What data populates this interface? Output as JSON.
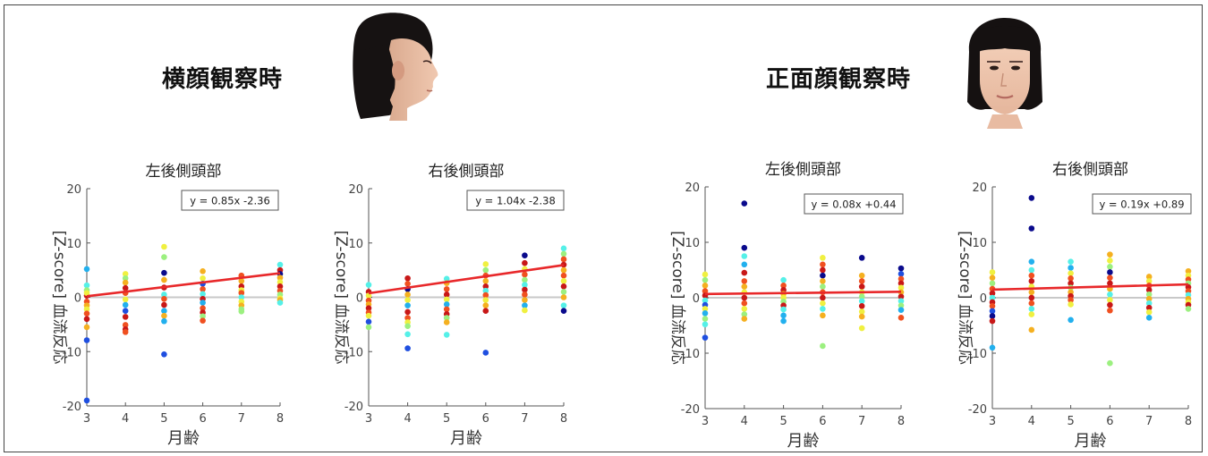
{
  "groups": [
    {
      "title": "横顔観察時",
      "face": "profile-face"
    },
    {
      "title": "正面顔観察時",
      "face": "frontal-face"
    }
  ],
  "colors": {
    "fit_line": "#e8282a",
    "zero_line": "#c8c8c8",
    "axis": "#555555",
    "palette": [
      "#0a0a8c",
      "#1f4fe0",
      "#22b0ee",
      "#55f0e8",
      "#9cf080",
      "#f0f040",
      "#f5b020",
      "#f05020",
      "#c81818"
    ]
  },
  "chart_data": [
    {
      "type": "scatter",
      "title": "左後側頭部",
      "xlabel": "月齢",
      "ylabel": "[Z-score] 血流反応",
      "xlim": [
        3,
        8
      ],
      "ylim": [
        -20,
        20
      ],
      "xticks": [
        3,
        4,
        5,
        6,
        7,
        8
      ],
      "yticks": [
        -20,
        -10,
        0,
        10,
        20
      ],
      "fit": {
        "label": "y = 0.85x -2.36",
        "slope": 0.85,
        "intercept": -2.36
      },
      "x": [
        3,
        3,
        3,
        3,
        3,
        3,
        3,
        3,
        3,
        3,
        3,
        3,
        3,
        4,
        4,
        4,
        4,
        4,
        4,
        4,
        4,
        4,
        4,
        4,
        4,
        5,
        5,
        5,
        5,
        5,
        5,
        5,
        5,
        5,
        5,
        5,
        5,
        6,
        6,
        6,
        6,
        6,
        6,
        6,
        6,
        6,
        6,
        6,
        7,
        7,
        7,
        7,
        7,
        7,
        7,
        7,
        7,
        7,
        8,
        8,
        8,
        8,
        8,
        8,
        8,
        8,
        8,
        8,
        8
      ],
      "y": [
        5.2,
        2.2,
        1.3,
        0.3,
        -0.8,
        -1.5,
        -2.2,
        -3.0,
        -4.0,
        -5.5,
        -7.9,
        -19.0,
        0.8,
        4.3,
        3.5,
        2.7,
        1.7,
        0.8,
        -0.4,
        -1.4,
        -2.5,
        -3.6,
        -5.1,
        -5.9,
        -6.4,
        9.3,
        7.4,
        4.5,
        3.2,
        1.8,
        0.5,
        -0.3,
        -1.4,
        -2.5,
        -3.4,
        -4.4,
        -10.5,
        4.8,
        3.5,
        2.5,
        1.5,
        0.6,
        -0.3,
        -1.0,
        -2.0,
        -2.8,
        -3.5,
        -4.3,
        4.0,
        3.0,
        2.0,
        1.3,
        0.8,
        0.0,
        -0.8,
        -1.5,
        -2.2,
        -2.6,
        6.0,
        5.0,
        4.3,
        3.6,
        2.8,
        2.0,
        1.2,
        0.5,
        -0.2,
        -0.5,
        -1.0
      ],
      "c": [
        2,
        3,
        4,
        8,
        7,
        6,
        5,
        7,
        8,
        6,
        1,
        1,
        5,
        5,
        4,
        6,
        8,
        7,
        5,
        2,
        1,
        8,
        7,
        8,
        7,
        5,
        4,
        0,
        6,
        8,
        3,
        7,
        8,
        2,
        6,
        2,
        1,
        6,
        5,
        1,
        7,
        3,
        8,
        2,
        7,
        8,
        4,
        7,
        7,
        6,
        8,
        5,
        7,
        3,
        5,
        6,
        4,
        4,
        3,
        8,
        0,
        6,
        5,
        8,
        7,
        4,
        5,
        6,
        3
      ]
    },
    {
      "type": "scatter",
      "title": "右後側頭部",
      "xlabel": "月齢",
      "ylabel": "[Z-score] 血流反応",
      "xlim": [
        3,
        8
      ],
      "ylim": [
        -20,
        20
      ],
      "xticks": [
        3,
        4,
        5,
        6,
        7,
        8
      ],
      "yticks": [
        -20,
        -10,
        0,
        10,
        20
      ],
      "fit": {
        "label": "y = 1.04x -2.38",
        "slope": 1.04,
        "intercept": -2.38
      },
      "x": [
        3,
        3,
        3,
        3,
        3,
        3,
        3,
        3,
        3,
        3,
        4,
        4,
        4,
        4,
        4,
        4,
        4,
        4,
        4,
        4,
        4,
        4,
        5,
        5,
        5,
        5,
        5,
        5,
        5,
        5,
        5,
        5,
        5,
        6,
        6,
        6,
        6,
        6,
        6,
        6,
        6,
        6,
        6,
        6,
        7,
        7,
        7,
        7,
        7,
        7,
        7,
        7,
        7,
        7,
        7,
        8,
        8,
        8,
        8,
        8,
        8,
        8,
        8,
        8,
        8,
        8,
        8
      ],
      "y": [
        2.3,
        1.0,
        0.3,
        -0.6,
        -1.3,
        -2.0,
        -2.8,
        -3.4,
        -4.5,
        -5.5,
        3.5,
        2.5,
        1.5,
        0.5,
        -0.5,
        -1.5,
        -2.7,
        -3.8,
        -4.6,
        -5.3,
        -6.8,
        -9.4,
        3.4,
        2.6,
        1.5,
        0.5,
        -0.4,
        -1.3,
        -2.2,
        -3.1,
        -3.8,
        -4.6,
        -6.9,
        6.1,
        5.0,
        4.0,
        3.0,
        2.0,
        1.2,
        0.4,
        -0.5,
        -1.5,
        -2.5,
        -10.2,
        7.7,
        6.3,
        5.2,
        4.2,
        3.2,
        2.3,
        1.4,
        0.5,
        -0.5,
        -1.5,
        -2.4,
        9.0,
        8.0,
        7.0,
        6.0,
        5.0,
        4.0,
        3.0,
        2.0,
        1.0,
        0.0,
        -1.5,
        -2.5
      ],
      "c": [
        3,
        8,
        5,
        7,
        6,
        8,
        7,
        5,
        1,
        4,
        8,
        7,
        0,
        6,
        5,
        2,
        8,
        7,
        5,
        4,
        3,
        1,
        3,
        6,
        7,
        8,
        5,
        2,
        7,
        8,
        4,
        6,
        3,
        5,
        4,
        7,
        6,
        8,
        3,
        7,
        5,
        6,
        8,
        1,
        0,
        8,
        5,
        7,
        4,
        3,
        8,
        7,
        6,
        2,
        5,
        3,
        4,
        7,
        8,
        6,
        7,
        5,
        8,
        4,
        6,
        3,
        0
      ]
    },
    {
      "type": "scatter",
      "title": "左後側頭部",
      "xlabel": "月齢",
      "ylabel": "[Z-score] 血流反応",
      "xlim": [
        3,
        8
      ],
      "ylim": [
        -20,
        20
      ],
      "xticks": [
        3,
        4,
        5,
        6,
        7,
        8
      ],
      "yticks": [
        -20,
        -10,
        0,
        10,
        20
      ],
      "fit": {
        "label": "y = 0.08x +0.44",
        "slope": 0.08,
        "intercept": 0.44
      },
      "x": [
        3,
        3,
        3,
        3,
        3,
        3,
        3,
        3,
        3,
        3,
        3,
        3,
        4,
        4,
        4,
        4,
        4,
        4,
        4,
        4,
        4,
        4,
        4,
        4,
        4,
        5,
        5,
        5,
        5,
        5,
        5,
        5,
        5,
        5,
        5,
        6,
        6,
        6,
        6,
        6,
        6,
        6,
        6,
        6,
        6,
        6,
        6,
        7,
        7,
        7,
        7,
        7,
        7,
        7,
        7,
        7,
        7,
        7,
        8,
        8,
        8,
        8,
        8,
        8,
        8,
        8,
        8,
        8,
        8
      ],
      "y": [
        4.2,
        3.2,
        2.2,
        1.2,
        0.4,
        -0.5,
        -1.3,
        -2.0,
        -2.8,
        -3.8,
        -4.8,
        -7.2,
        17.0,
        9.0,
        7.5,
        6.0,
        4.5,
        3.0,
        2.0,
        1.0,
        0.0,
        -1.0,
        -2.0,
        -3.0,
        -3.8,
        3.2,
        2.2,
        1.4,
        0.7,
        0.0,
        -0.7,
        -1.4,
        -2.1,
        -3.2,
        -4.2,
        7.2,
        6.0,
        5.0,
        4.0,
        3.0,
        2.0,
        1.0,
        0.0,
        -1.0,
        -2.0,
        -3.2,
        -8.7,
        7.2,
        4.0,
        3.0,
        2.0,
        1.0,
        0.2,
        -0.6,
        -1.5,
        -2.5,
        -3.4,
        -5.5,
        5.3,
        4.3,
        3.4,
        2.6,
        1.8,
        1.0,
        0.2,
        -0.6,
        -1.4,
        -2.2,
        -3.6
      ],
      "c": [
        5,
        4,
        6,
        7,
        8,
        3,
        1,
        5,
        2,
        4,
        3,
        1,
        0,
        0,
        3,
        2,
        8,
        7,
        6,
        5,
        8,
        7,
        5,
        4,
        6,
        3,
        7,
        8,
        6,
        5,
        4,
        8,
        3,
        2,
        2,
        5,
        7,
        8,
        0,
        6,
        4,
        7,
        8,
        5,
        3,
        6,
        4,
        0,
        6,
        7,
        8,
        5,
        4,
        3,
        8,
        5,
        6,
        5,
        0,
        1,
        7,
        8,
        5,
        6,
        8,
        3,
        4,
        2,
        7
      ]
    },
    {
      "type": "scatter",
      "title": "右後側頭部",
      "xlabel": "月齢",
      "ylabel": "[Z-score] 血流反応",
      "xlim": [
        3,
        8
      ],
      "ylim": [
        -20,
        20
      ],
      "xticks": [
        3,
        4,
        5,
        6,
        7,
        8
      ],
      "yticks": [
        -20,
        -10,
        0,
        10,
        20
      ],
      "fit": {
        "label": "y = 0.19x +0.89",
        "slope": 0.19,
        "intercept": 0.89
      },
      "x": [
        3,
        3,
        3,
        3,
        3,
        3,
        3,
        3,
        3,
        3,
        3,
        3,
        4,
        4,
        4,
        4,
        4,
        4,
        4,
        4,
        4,
        4,
        4,
        4,
        4,
        5,
        5,
        5,
        5,
        5,
        5,
        5,
        5,
        5,
        5,
        5,
        6,
        6,
        6,
        6,
        6,
        6,
        6,
        6,
        6,
        6,
        6,
        6,
        7,
        7,
        7,
        7,
        7,
        7,
        7,
        7,
        7,
        7,
        8,
        8,
        8,
        8,
        8,
        8,
        8,
        8,
        8,
        8,
        8
      ],
      "y": [
        4.6,
        3.6,
        2.6,
        1.6,
        0.8,
        0.0,
        -0.8,
        -1.5,
        -2.4,
        -3.3,
        -4.2,
        -9.0,
        18.0,
        12.5,
        6.5,
        5.0,
        4.0,
        3.0,
        2.0,
        1.0,
        0.0,
        -1.0,
        -2.0,
        -3.0,
        -5.8,
        6.5,
        5.4,
        4.4,
        3.5,
        2.6,
        1.8,
        1.0,
        0.3,
        -0.4,
        -1.2,
        -4.0,
        7.8,
        6.7,
        5.6,
        4.6,
        3.6,
        2.6,
        1.6,
        0.6,
        -0.4,
        -1.3,
        -2.3,
        -11.8,
        3.8,
        3.0,
        2.2,
        1.4,
        0.6,
        -0.2,
        -1.0,
        -1.8,
        -2.6,
        -3.6,
        4.8,
        4.0,
        3.3,
        2.6,
        1.9,
        1.2,
        0.5,
        -0.2,
        -0.8,
        -1.3,
        -2.0
      ],
      "c": [
        5,
        6,
        4,
        7,
        8,
        3,
        8,
        7,
        1,
        0,
        8,
        2,
        0,
        0,
        2,
        3,
        7,
        8,
        5,
        6,
        8,
        7,
        3,
        5,
        6,
        3,
        2,
        5,
        7,
        8,
        4,
        6,
        8,
        7,
        5,
        2,
        6,
        5,
        4,
        0,
        7,
        8,
        6,
        3,
        5,
        8,
        7,
        4,
        6,
        5,
        7,
        8,
        4,
        6,
        3,
        8,
        5,
        2,
        6,
        5,
        7,
        4,
        8,
        7,
        3,
        6,
        5,
        8,
        4
      ]
    }
  ]
}
